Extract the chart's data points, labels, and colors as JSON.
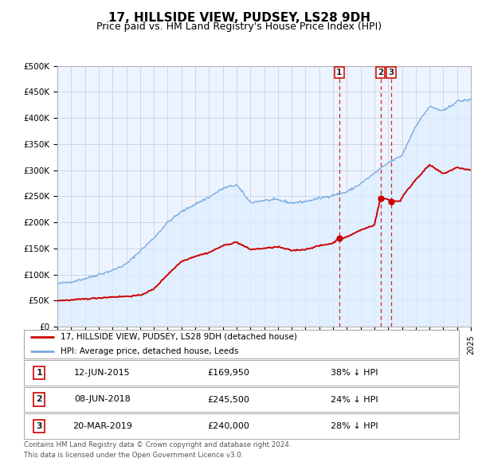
{
  "title": "17, HILLSIDE VIEW, PUDSEY, LS28 9DH",
  "subtitle": "Price paid vs. HM Land Registry's House Price Index (HPI)",
  "title_fontsize": 11,
  "subtitle_fontsize": 9,
  "hpi_color": "#7aaadd",
  "hpi_fill_color": "#ddeeff",
  "price_color": "#cc0000",
  "plot_bg_color": "#eef4ff",
  "ylim": [
    0,
    500000
  ],
  "ytick_labels": [
    "£0",
    "£50K",
    "£100K",
    "£150K",
    "£200K",
    "£250K",
    "£300K",
    "£350K",
    "£400K",
    "£450K",
    "£500K"
  ],
  "ytick_values": [
    0,
    50000,
    100000,
    150000,
    200000,
    250000,
    300000,
    350000,
    400000,
    450000,
    500000
  ],
  "xmin": 1995,
  "xmax": 2025,
  "grid_color": "#bbccdd",
  "legend_label_red": "17, HILLSIDE VIEW, PUDSEY, LS28 9DH (detached house)",
  "legend_label_blue": "HPI: Average price, detached house, Leeds",
  "events": [
    {
      "num": 1,
      "date": "12-JUN-2015",
      "price": "£169,950",
      "pct": "38% ↓ HPI",
      "x": 2015.44
    },
    {
      "num": 2,
      "date": "08-JUN-2018",
      "price": "£245,500",
      "pct": "24% ↓ HPI",
      "x": 2018.44
    },
    {
      "num": 3,
      "date": "20-MAR-2019",
      "price": "£240,000",
      "pct": "28% ↓ HPI",
      "x": 2019.22
    }
  ],
  "event1_y": 169950,
  "event2_y": 245500,
  "event3_y": 240000,
  "footnote1": "Contains HM Land Registry data © Crown copyright and database right 2024.",
  "footnote2": "This data is licensed under the Open Government Licence v3.0.",
  "dashed_line_color": "#cc0000"
}
